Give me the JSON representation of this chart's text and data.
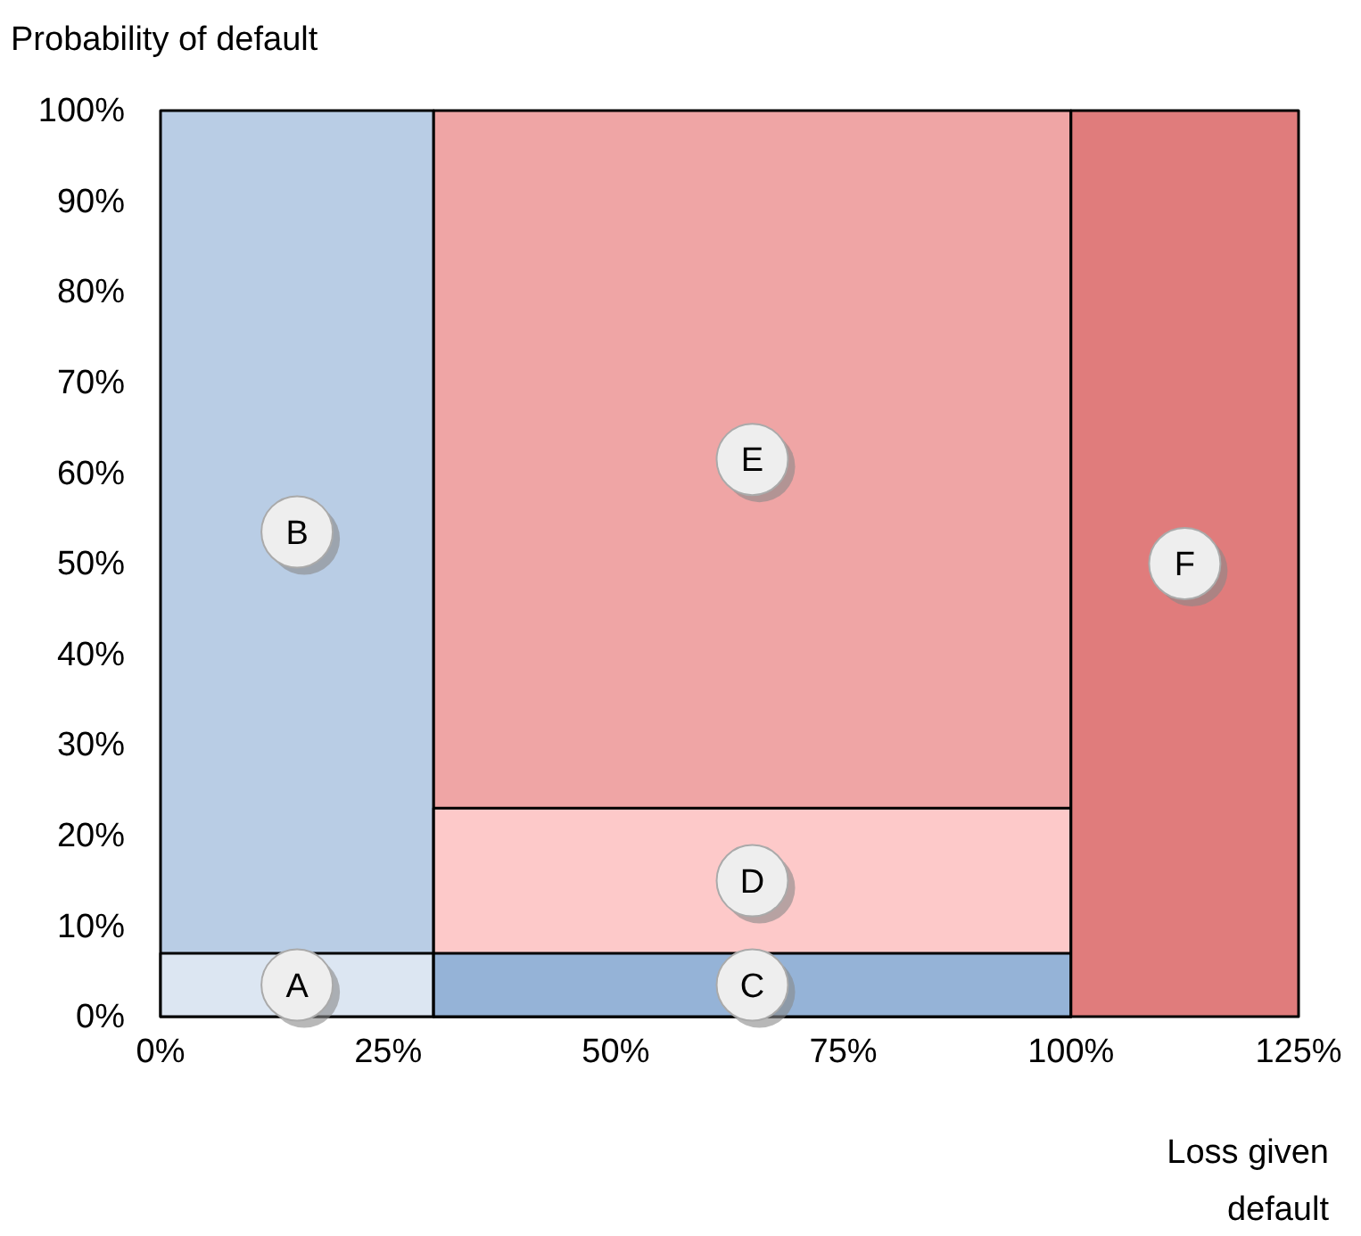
{
  "chart_data": {
    "type": "area",
    "xlabel": "Loss given default",
    "ylabel": "Probability of default",
    "xlim": [
      0,
      125
    ],
    "ylim": [
      0,
      100
    ],
    "xticks": [
      {
        "value": 0,
        "label": "0%"
      },
      {
        "value": 25,
        "label": "25%"
      },
      {
        "value": 50,
        "label": "50%"
      },
      {
        "value": 75,
        "label": "75%"
      },
      {
        "value": 100,
        "label": "100%"
      },
      {
        "value": 125,
        "label": "125%"
      }
    ],
    "yticks": [
      {
        "value": 0,
        "label": "0%"
      },
      {
        "value": 10,
        "label": "10%"
      },
      {
        "value": 20,
        "label": "20%"
      },
      {
        "value": 30,
        "label": "30%"
      },
      {
        "value": 40,
        "label": "40%"
      },
      {
        "value": 50,
        "label": "50%"
      },
      {
        "value": 60,
        "label": "60%"
      },
      {
        "value": 70,
        "label": "70%"
      },
      {
        "value": 80,
        "label": "80%"
      },
      {
        "value": 90,
        "label": "90%"
      },
      {
        "value": 100,
        "label": "100%"
      }
    ],
    "legend": false,
    "series": [
      {
        "name": "B",
        "color": "#b9cde5",
        "x": [
          0,
          30
        ],
        "values": [
          100,
          100
        ]
      },
      {
        "name": "A",
        "color": "#dce6f2",
        "x": [
          0,
          30
        ],
        "values": [
          7,
          7
        ]
      },
      {
        "name": "E",
        "color": "#efa5a5",
        "x": [
          30,
          100
        ],
        "values": [
          100,
          100
        ]
      },
      {
        "name": "D",
        "color": "#fdc9c9",
        "x": [
          30,
          100
        ],
        "values": [
          23,
          23
        ]
      },
      {
        "name": "C",
        "color": "#95b3d7",
        "x": [
          30,
          100
        ],
        "values": [
          7,
          7
        ]
      },
      {
        "name": "F",
        "color": "#e07c7c",
        "x": [
          100,
          125
        ],
        "values": [
          100,
          100
        ]
      }
    ]
  }
}
